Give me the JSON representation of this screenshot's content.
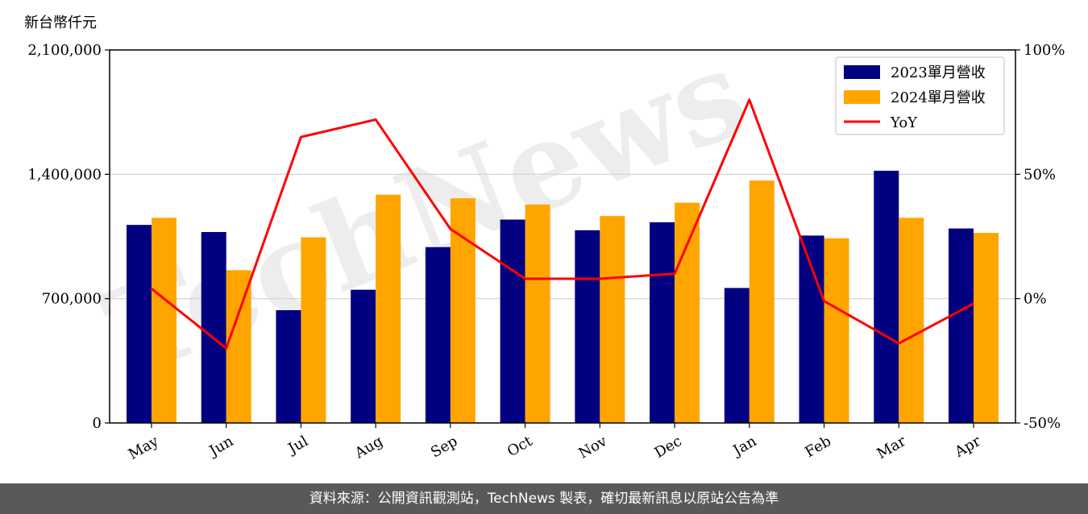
{
  "unit_label": "新台幣仟元",
  "footer": "資料來源：公開資訊觀測站，TechNews 製表，確切最新訊息以原站公告為準",
  "watermark": "TechNews",
  "colors": {
    "series_2023": "#000080",
    "series_2024": "#FFA500",
    "yoy": "#FF0000",
    "grid": "#d0d0d0",
    "footer_bg": "#595959"
  },
  "chart_data": {
    "type": "bar",
    "categories": [
      "May",
      "Jun",
      "Jul",
      "Aug",
      "Sep",
      "Oct",
      "Nov",
      "Dec",
      "Jan",
      "Feb",
      "Mar",
      "Apr"
    ],
    "series": [
      {
        "name": "2023單月營收",
        "values": [
          1115000,
          1075000,
          635000,
          750000,
          990000,
          1145000,
          1085000,
          1130000,
          760000,
          1055000,
          1420000,
          1095000
        ]
      },
      {
        "name": "2024單月營收",
        "values": [
          1155000,
          860000,
          1045000,
          1285000,
          1265000,
          1230000,
          1165000,
          1240000,
          1365000,
          1040000,
          1155000,
          1070000
        ]
      }
    ],
    "line_series": {
      "name": "YoY",
      "axis": "right",
      "values": [
        4,
        -20,
        65,
        72,
        28,
        8,
        8,
        10,
        80,
        -1,
        -18,
        -2
      ]
    },
    "y_left": {
      "min": 0,
      "max": 2100000,
      "ticks": [
        0,
        700000,
        1400000,
        2100000
      ],
      "tick_labels": [
        "0",
        "700,000",
        "1,400,000",
        "2,100,000"
      ]
    },
    "y_right": {
      "min": -50,
      "max": 100,
      "ticks": [
        -50,
        0,
        50,
        100
      ],
      "tick_labels": [
        "-50%",
        "0%",
        "50%",
        "100%"
      ]
    },
    "legend": {
      "position": "top-right",
      "entries": [
        "2023單月營收",
        "2024單月營收",
        "YoY"
      ]
    },
    "grid": "horizontal"
  }
}
